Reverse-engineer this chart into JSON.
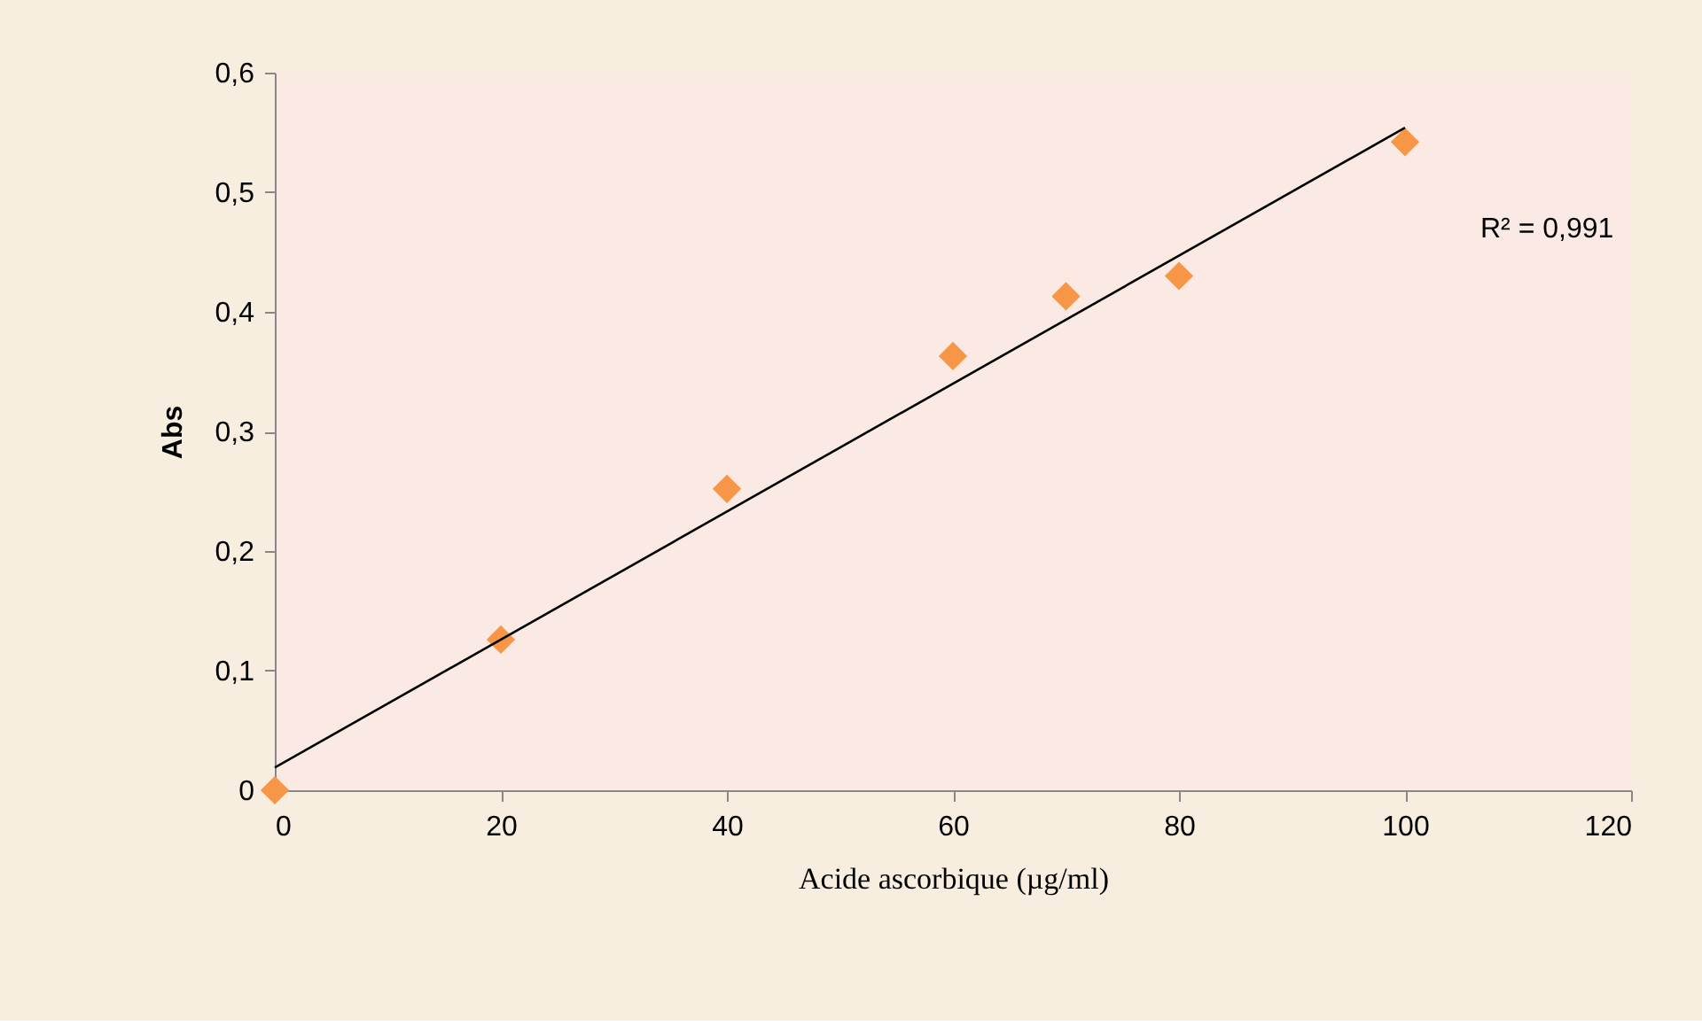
{
  "chart_data": {
    "type": "scatter",
    "xlabel": "Acide ascorbique (µg/ml)",
    "ylabel": "Abs",
    "annotations": [
      "R² = 0,991"
    ],
    "xlim": [
      0,
      120
    ],
    "xticks": [
      0,
      20,
      40,
      60,
      80,
      100,
      120
    ],
    "ylim": [
      0,
      0.6
    ],
    "yticks": [
      {
        "value": 0,
        "label": "0"
      },
      {
        "value": 0.1,
        "label": "0,1"
      },
      {
        "value": 0.2,
        "label": "0,2"
      },
      {
        "value": 0.3,
        "label": "0,3"
      },
      {
        "value": 0.4,
        "label": "0,4"
      },
      {
        "value": 0.5,
        "label": "0,5"
      },
      {
        "value": 0.6,
        "label": "0,6"
      }
    ],
    "grid": false,
    "legend": false,
    "series": [
      {
        "type": "scatter",
        "color": "#f79646",
        "marker": "diamond",
        "x": [
          0,
          20,
          40,
          60,
          70,
          80,
          100
        ],
        "values": [
          0,
          0.126,
          0.252,
          0.363,
          0.413,
          0.43,
          0.542
        ]
      },
      {
        "type": "line",
        "color": "#000000",
        "line_style": "solid",
        "marker": "none",
        "x": [
          0,
          100
        ],
        "values": [
          0.019,
          0.554
        ]
      }
    ]
  }
}
